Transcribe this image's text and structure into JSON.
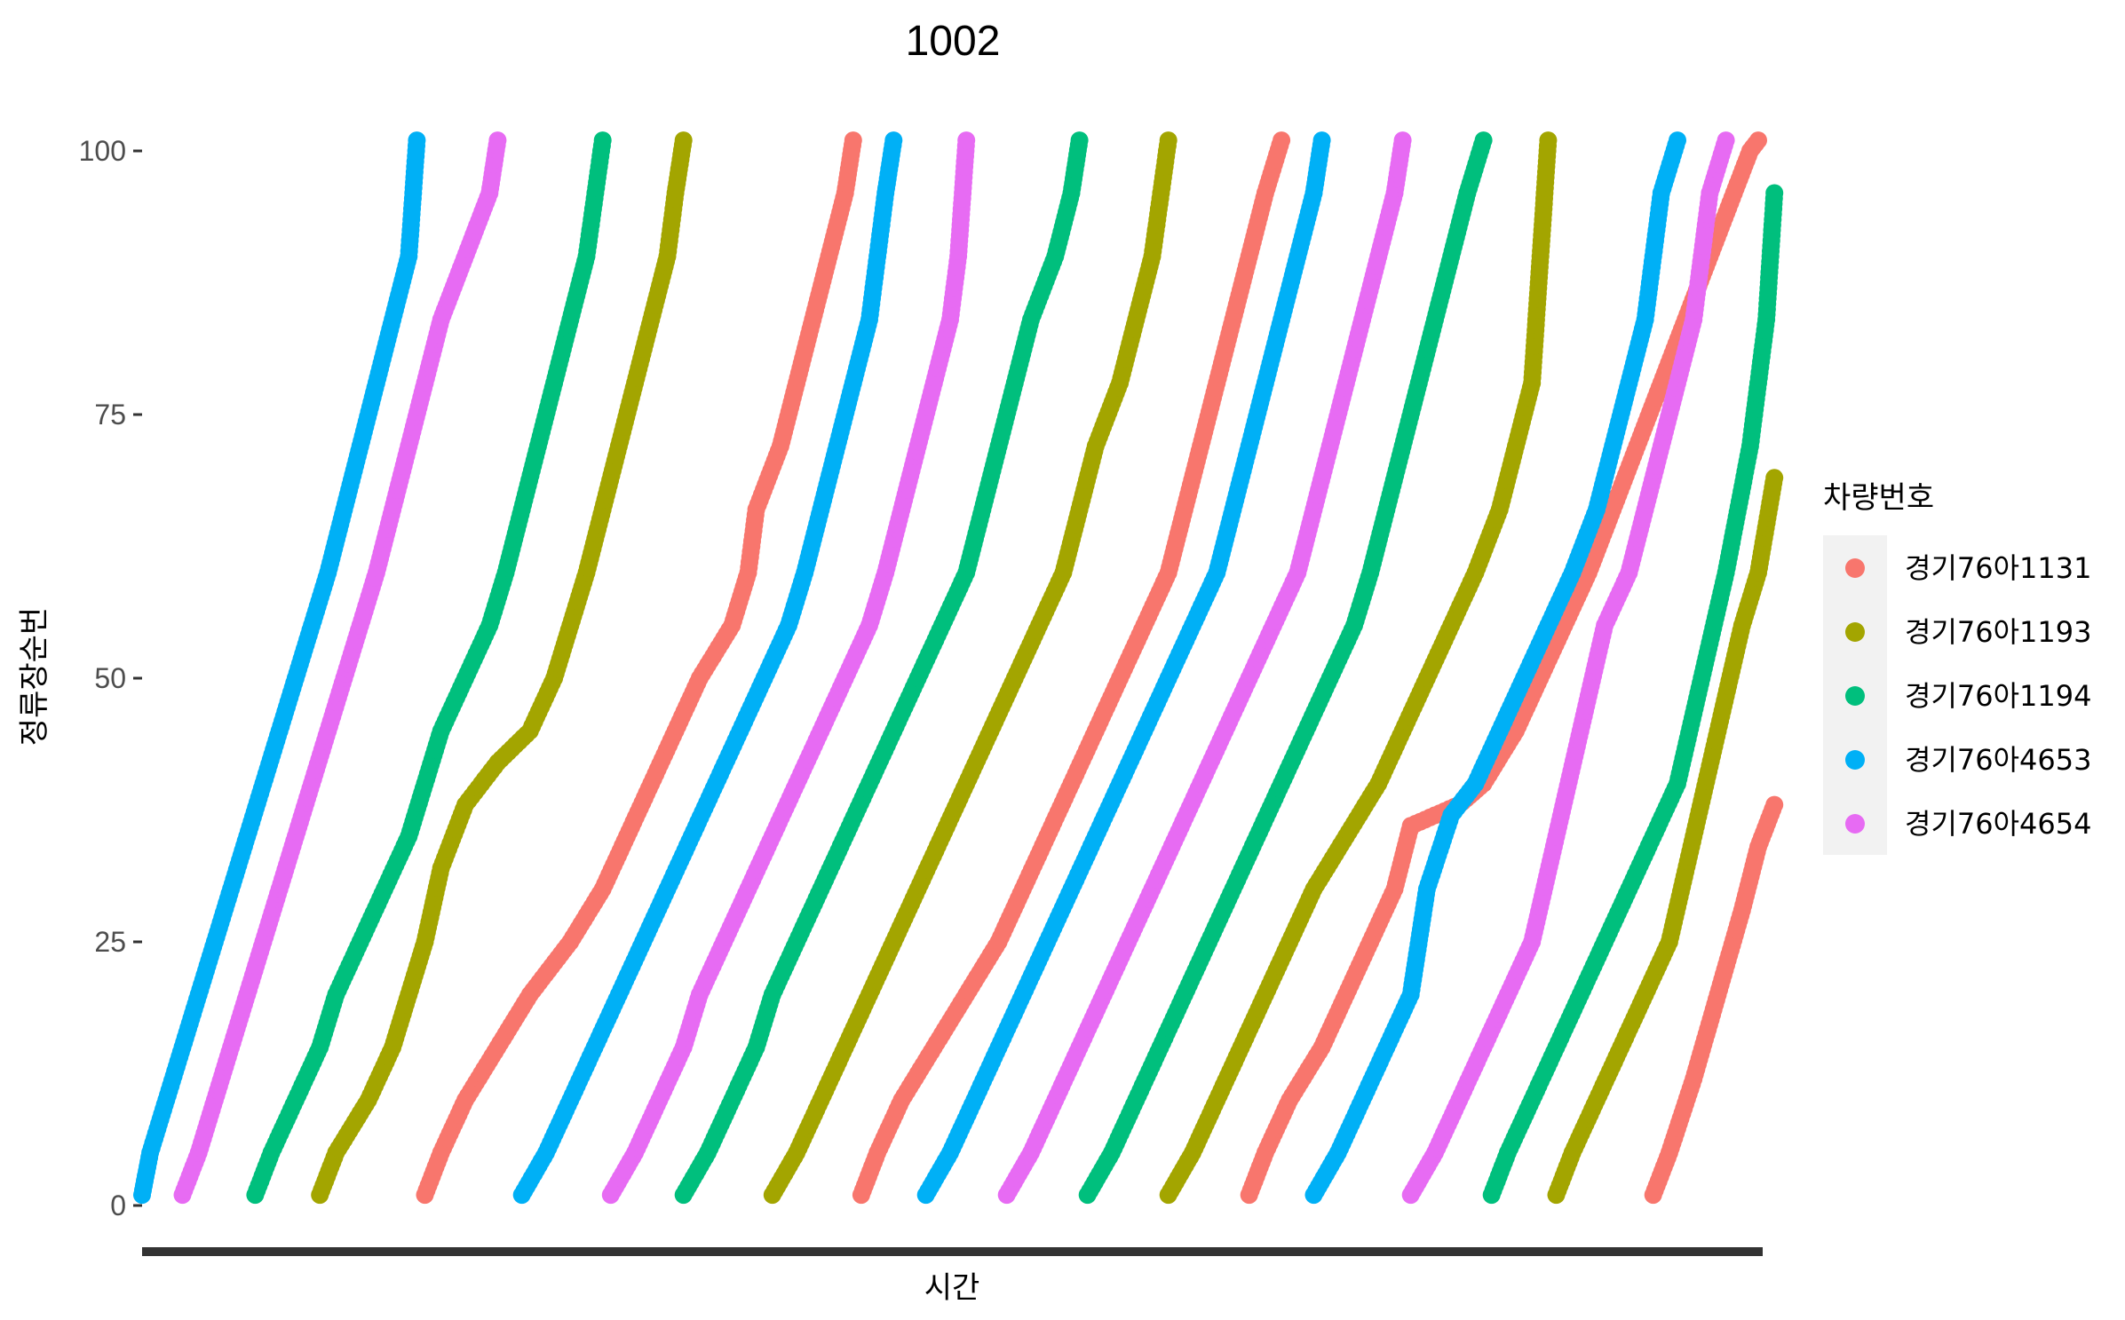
{
  "chart_data": {
    "type": "scatter",
    "title": "1002",
    "xlabel": "시간",
    "ylabel": "정류장순번",
    "ylim": [
      0,
      101
    ],
    "yticks": [
      0,
      25,
      50,
      75,
      100
    ],
    "xlim": [
      0,
      100
    ],
    "x_tick_labels": [],
    "grid": false,
    "legend": {
      "title": "차량번호",
      "position": "right"
    },
    "series": [
      {
        "name": "경기76아1131",
        "color": "#F8766D",
        "trips": [
          {
            "x": [
              17.5,
              18.5,
              20,
              22,
              24,
              26.5,
              28.5,
              30,
              31.5,
              33,
              34.5,
              36.5,
              37.5,
              38,
              39.5,
              40.5,
              41.5,
              42.5,
              43.5,
              44
            ],
            "y": [
              1,
              5,
              10,
              15,
              20,
              25,
              30,
              35,
              40,
              45,
              50,
              55,
              60,
              66,
              72,
              78,
              84,
              90,
              96,
              101
            ]
          },
          {
            "x": [
              44.5,
              45.5,
              47,
              49,
              51,
              53,
              54.5,
              56,
              57.5,
              59,
              60.5,
              62,
              63.5,
              64.5,
              65.5,
              66.5,
              67.5,
              68.5,
              69.5,
              70.5
            ],
            "y": [
              1,
              5,
              10,
              15,
              20,
              25,
              30,
              35,
              40,
              45,
              50,
              55,
              60,
              66,
              72,
              78,
              84,
              90,
              96,
              101
            ]
          },
          {
            "x": [
              68.5,
              69.5,
              71,
              73,
              74.5,
              76,
              77.5,
              78.5,
              80,
              81.5,
              83,
              85,
              86.5,
              88,
              89.5,
              91,
              92.5,
              94,
              95.5,
              97,
              98.5,
              99.5,
              100
            ],
            "y": [
              1,
              5,
              10,
              15,
              20,
              25,
              30,
              36,
              37,
              38,
              40,
              45,
              50,
              55,
              60,
              66,
              72,
              78,
              84,
              90,
              96,
              100,
              101
            ]
          },
          {
            "x": [
              93.5,
              94.5,
              96,
              97.5,
              99,
              100,
              101
            ],
            "y": [
              1,
              5,
              12,
              20,
              28,
              34,
              38
            ]
          }
        ]
      },
      {
        "name": "경기76아1193",
        "color": "#A3A500",
        "trips": [
          {
            "x": [
              11,
              12,
              14,
              15.5,
              16.5,
              17.5,
              18.5,
              20,
              22,
              24,
              25.5,
              26.5,
              27.5,
              28.5,
              29.5,
              30.5,
              31.5,
              32.5,
              33,
              33.5
            ],
            "y": [
              1,
              5,
              10,
              15,
              20,
              25,
              32,
              38,
              42,
              45,
              50,
              55,
              60,
              66,
              72,
              78,
              84,
              90,
              96,
              101
            ]
          },
          {
            "x": [
              39,
              40.5,
              42,
              43.5,
              45,
              46.5,
              48,
              49.5,
              51,
              52.5,
              54,
              55.5,
              57,
              58,
              59,
              60.5,
              61.5,
              62.5,
              63.5
            ],
            "y": [
              1,
              5,
              10,
              15,
              20,
              25,
              30,
              35,
              40,
              45,
              50,
              55,
              60,
              66,
              72,
              78,
              84,
              90,
              101
            ]
          },
          {
            "x": [
              63.5,
              65,
              66.5,
              68,
              69.5,
              71,
              72.5,
              74.5,
              76.5,
              78,
              79.5,
              81,
              82.5,
              84,
              85,
              86,
              87
            ],
            "y": [
              1,
              5,
              10,
              15,
              20,
              25,
              30,
              35,
              40,
              45,
              50,
              55,
              60,
              66,
              72,
              78,
              101
            ]
          },
          {
            "x": [
              87.5,
              88.5,
              90,
              91.5,
              93,
              94.5,
              96,
              97.5,
              99,
              100,
              101
            ],
            "y": [
              1,
              5,
              10,
              15,
              20,
              25,
              35,
              45,
              55,
              60,
              69
            ]
          }
        ]
      },
      {
        "name": "경기76아1194",
        "color": "#00BF7D",
        "trips": [
          {
            "x": [
              7,
              8,
              9.5,
              11,
              12,
              13.5,
              15,
              16.5,
              17.5,
              18.5,
              20,
              21.5,
              22.5,
              23.5,
              24.5,
              25.5,
              26.5,
              27.5,
              28.5
            ],
            "y": [
              1,
              5,
              10,
              15,
              20,
              25,
              30,
              35,
              40,
              45,
              50,
              55,
              60,
              66,
              72,
              78,
              84,
              90,
              101
            ]
          },
          {
            "x": [
              33.5,
              35,
              36.5,
              38,
              39,
              40.5,
              42,
              43.5,
              45,
              46.5,
              48,
              49.5,
              51,
              52,
              53,
              54,
              55,
              56.5,
              57.5,
              58
            ],
            "y": [
              1,
              5,
              10,
              15,
              20,
              25,
              30,
              35,
              40,
              45,
              50,
              55,
              60,
              66,
              72,
              78,
              84,
              90,
              96,
              101
            ]
          },
          {
            "x": [
              58.5,
              60,
              61.5,
              63,
              64.5,
              66,
              67.5,
              69,
              70.5,
              72,
              73.5,
              75,
              76,
              77,
              78,
              79,
              80,
              81,
              82,
              83
            ],
            "y": [
              1,
              5,
              10,
              15,
              20,
              25,
              30,
              35,
              40,
              45,
              50,
              55,
              60,
              66,
              72,
              78,
              84,
              90,
              96,
              101
            ]
          },
          {
            "x": [
              83.5,
              84.5,
              86,
              87.5,
              89,
              90.5,
              92,
              93.5,
              95,
              96.5,
              98,
              99.5,
              100.5,
              101
            ],
            "y": [
              1,
              5,
              10,
              15,
              20,
              25,
              30,
              35,
              40,
              50,
              60,
              72,
              84,
              96
            ]
          }
        ]
      },
      {
        "name": "경기76아4653",
        "color": "#00B0F6",
        "trips": [
          {
            "x": [
              0,
              0.5,
              1.5,
              2.5,
              3.5,
              4.5,
              5.5,
              6.5,
              7.5,
              8.5,
              9.5,
              10.5,
              11.5,
              12.5,
              13.5,
              14.5,
              15.5,
              16.5,
              17
            ],
            "y": [
              1,
              5,
              10,
              15,
              20,
              25,
              30,
              35,
              40,
              45,
              50,
              55,
              60,
              66,
              72,
              78,
              84,
              90,
              101
            ]
          },
          {
            "x": [
              23.5,
              25,
              26.5,
              28,
              29.5,
              31,
              32.5,
              34,
              35.5,
              37,
              38.5,
              40,
              41,
              42,
              43,
              44,
              45,
              45.5,
              46,
              46.5
            ],
            "y": [
              1,
              5,
              10,
              15,
              20,
              25,
              30,
              35,
              40,
              45,
              50,
              55,
              60,
              66,
              72,
              78,
              84,
              90,
              96,
              101
            ]
          },
          {
            "x": [
              48.5,
              50,
              51.5,
              53,
              54.5,
              56,
              57.5,
              59,
              60.5,
              62,
              63.5,
              65,
              66.5,
              67.5,
              68.5,
              69.5,
              70.5,
              71.5,
              72.5,
              73
            ],
            "y": [
              1,
              5,
              10,
              15,
              20,
              25,
              30,
              35,
              40,
              45,
              50,
              55,
              60,
              66,
              72,
              78,
              84,
              90,
              96,
              101
            ]
          },
          {
            "x": [
              72.5,
              74,
              75.5,
              77,
              78.5,
              79.5,
              81,
              82.5,
              84,
              85.5,
              87,
              88.5,
              90,
              91,
              92,
              93,
              94,
              95
            ],
            "y": [
              1,
              5,
              10,
              15,
              20,
              30,
              37,
              40,
              45,
              50,
              55,
              60,
              66,
              72,
              78,
              84,
              96,
              101
            ]
          }
        ]
      },
      {
        "name": "경기76아4654",
        "color": "#E76BF3",
        "trips": [
          {
            "x": [
              2.5,
              3.5,
              4.5,
              5.5,
              6.5,
              7.5,
              8.5,
              9.5,
              10.5,
              11.5,
              12.5,
              13.5,
              14.5,
              15.5,
              16.5,
              17.5,
              18.5,
              19.5,
              20.5,
              21.5,
              22
            ],
            "y": [
              1,
              5,
              10,
              15,
              20,
              25,
              30,
              35,
              40,
              45,
              50,
              55,
              60,
              66,
              72,
              78,
              84,
              88,
              92,
              96,
              101
            ]
          },
          {
            "x": [
              29,
              30.5,
              32,
              33.5,
              34.5,
              36,
              37.5,
              39,
              40.5,
              42,
              43.5,
              45,
              46,
              47,
              48,
              49,
              50,
              50.5,
              51
            ],
            "y": [
              1,
              5,
              10,
              15,
              20,
              25,
              30,
              35,
              40,
              45,
              50,
              55,
              60,
              66,
              72,
              78,
              84,
              90,
              101
            ]
          },
          {
            "x": [
              53.5,
              55,
              56.5,
              58,
              59.5,
              61,
              62.5,
              64,
              65.5,
              67,
              68.5,
              70,
              71.5,
              72.5,
              73.5,
              74.5,
              75.5,
              76.5,
              77.5,
              78
            ],
            "y": [
              1,
              5,
              10,
              15,
              20,
              25,
              30,
              35,
              40,
              45,
              50,
              55,
              60,
              66,
              72,
              78,
              84,
              90,
              96,
              101
            ]
          },
          {
            "x": [
              78.5,
              80,
              81.5,
              83,
              84.5,
              86,
              87.5,
              89,
              90.5,
              92,
              93,
              94,
              95,
              96,
              97,
              98
            ],
            "y": [
              1,
              5,
              10,
              15,
              20,
              25,
              35,
              45,
              55,
              60,
              66,
              72,
              78,
              84,
              96,
              101
            ]
          }
        ]
      }
    ]
  }
}
